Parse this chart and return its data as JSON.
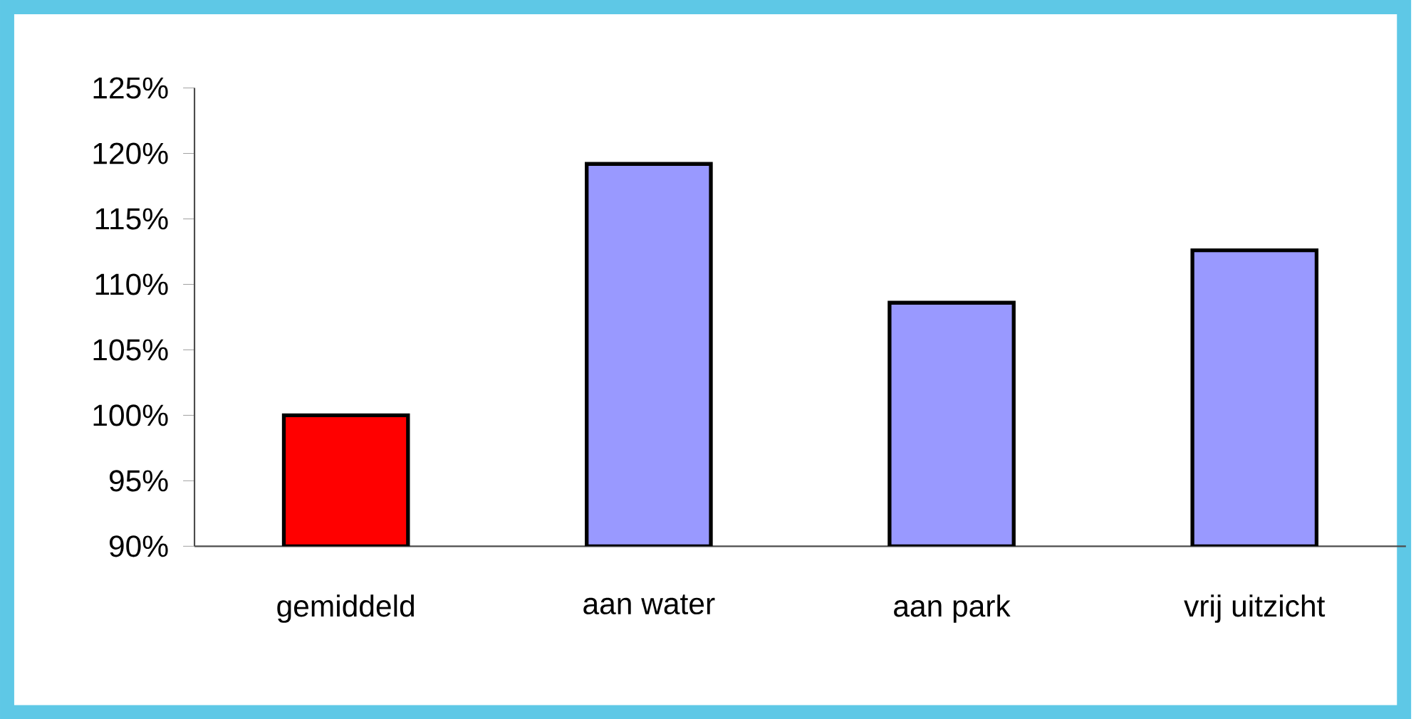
{
  "chart_data": {
    "type": "bar",
    "categories": [
      "gemiddeld",
      "aan water",
      "aan park",
      "vrij uitzicht"
    ],
    "values": [
      100,
      119.2,
      108.6,
      112.6
    ],
    "colors": [
      "#ff0000",
      "#9999ff",
      "#9999ff",
      "#9999ff"
    ],
    "ylim": [
      90,
      125
    ],
    "yticks": [
      {
        "value": 90,
        "label": "90%"
      },
      {
        "value": 95,
        "label": "95%"
      },
      {
        "value": 100,
        "label": "100%"
      },
      {
        "value": 105,
        "label": "105%"
      },
      {
        "value": 110,
        "label": "110%"
      },
      {
        "value": 115,
        "label": "115%"
      },
      {
        "value": 120,
        "label": "120%"
      },
      {
        "value": 125,
        "label": "125%"
      }
    ],
    "grid": false
  }
}
